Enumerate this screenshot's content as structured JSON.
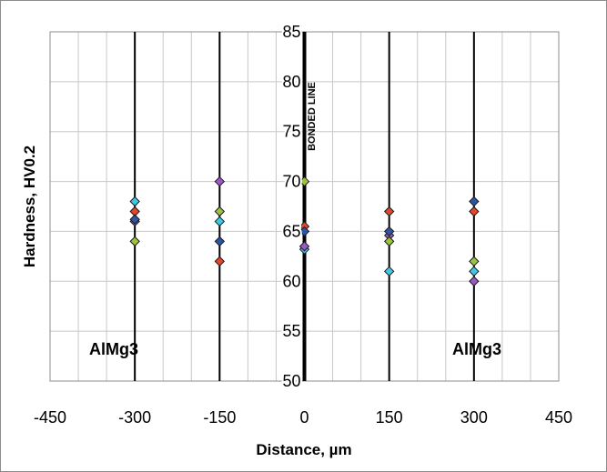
{
  "chart_data": {
    "type": "scatter",
    "title": "",
    "xlabel": "Distance, µm",
    "ylabel": "Hardness, HV0.2",
    "xlim": [
      -450,
      450
    ],
    "ylim": [
      50,
      85
    ],
    "x_ticks": [
      -450,
      -300,
      -150,
      0,
      150,
      300,
      450
    ],
    "y_ticks": [
      50,
      55,
      60,
      65,
      70,
      75,
      80,
      85
    ],
    "x_minor_step": 50,
    "grid": "on",
    "measurement_lines_x": [
      -300,
      -150,
      150,
      300
    ],
    "bond_line_x": 0,
    "annotations": {
      "bond_line": "BONDED LINE",
      "left_region": "AlMg3",
      "right_region": "AlMg3"
    },
    "marker": "diamond",
    "series": [
      {
        "color": "#3cc8e6",
        "points": [
          [
            -300,
            68
          ],
          [
            -150,
            66
          ],
          [
            0,
            63.2
          ],
          [
            150,
            61
          ],
          [
            300,
            61
          ]
        ]
      },
      {
        "color": "#e3452f",
        "points": [
          [
            -300,
            67
          ],
          [
            -150,
            62
          ],
          [
            0,
            65.5
          ],
          [
            150,
            67
          ],
          [
            300,
            67
          ]
        ]
      },
      {
        "color": "#9b59c6",
        "points": [
          [
            -300,
            66
          ],
          [
            -150,
            70
          ],
          [
            0,
            63.5
          ],
          [
            150,
            64.6
          ],
          [
            300,
            60
          ]
        ]
      },
      {
        "color": "#9bc43c",
        "points": [
          [
            -300,
            64
          ],
          [
            -150,
            67
          ],
          [
            0,
            70
          ],
          [
            150,
            64
          ],
          [
            300,
            62
          ]
        ]
      },
      {
        "color": "#2e55a4",
        "points": [
          [
            -300,
            66.2
          ],
          [
            -150,
            64
          ],
          [
            0,
            65
          ],
          [
            150,
            65
          ],
          [
            300,
            68
          ]
        ]
      }
    ]
  }
}
